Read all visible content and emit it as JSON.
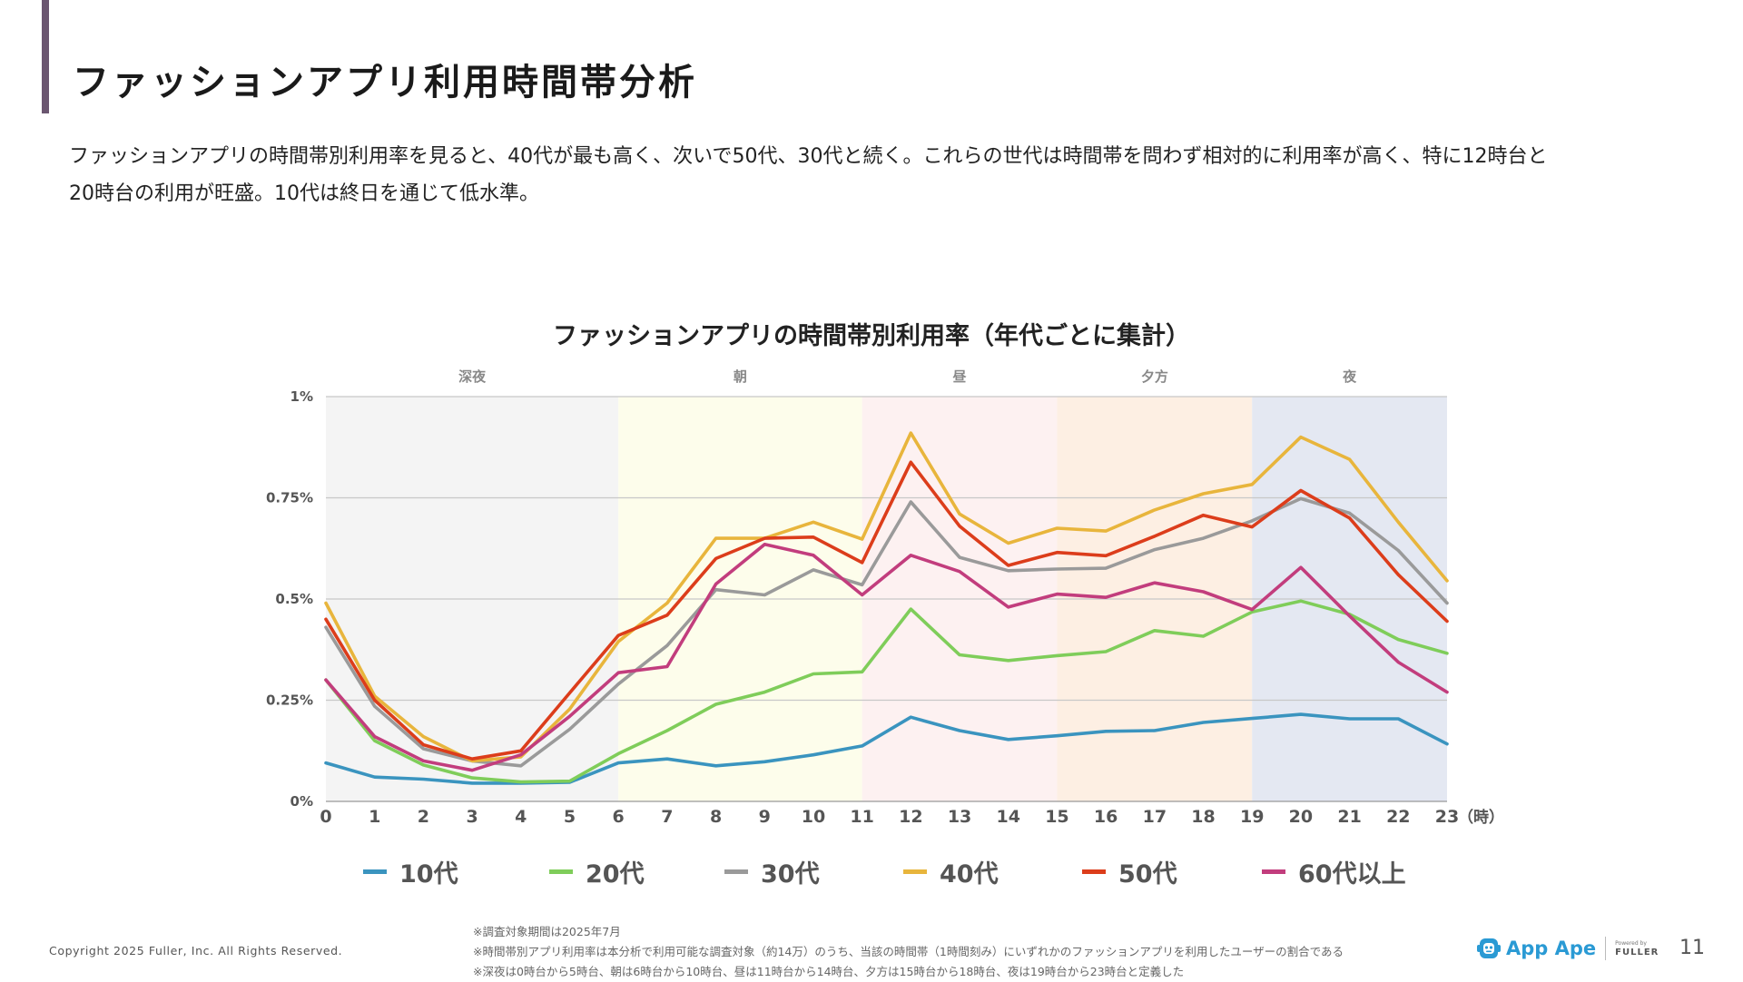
{
  "page": {
    "title": "ファッションアプリ利用時間帯分析",
    "summary_line1": "ファッションアプリの時間帯別利用率を見ると、40代が最も高く、次いで50代、30代と続く。これらの世代は時間帯を問わず相対的に利用率が高く、特に12時台と",
    "summary_line2": "20時台の利用が旺盛。10代は終日を通じて低水準。",
    "copyright": "Copyright 2025 Fuller, Inc. All Rights Reserved.",
    "notes": [
      "※調査対象期間は2025年7月",
      "※時間帯別アプリ利用率は本分析で利用可能な調査対象（約14万）のうち、当該の時間帯（1時間刻み）にいずれかのファッションアプリを利用したユーザーの割合である",
      "※深夜は0時台から5時台、朝は6時台から10時台、昼は11時台から14時台、夕方は15時台から18時台、夜は19時台から23時台と定義した"
    ],
    "logo_text": "App Ape",
    "logo_powered_by": "Powered by",
    "logo_company": "FULLER",
    "page_number": "11"
  },
  "chart_data": {
    "type": "line",
    "title": "ファッションアプリの時間帯別利用率（年代ごとに集計）",
    "x": [
      0,
      1,
      2,
      3,
      4,
      5,
      6,
      7,
      8,
      9,
      10,
      11,
      12,
      13,
      14,
      15,
      16,
      17,
      18,
      19,
      20,
      21,
      22,
      23
    ],
    "x_unit_label": "（時）",
    "y_ticks": [
      0,
      0.25,
      0.5,
      0.75,
      1
    ],
    "y_tick_labels": [
      "0%",
      "0.25%",
      "0.5%",
      "0.75%",
      "1%"
    ],
    "ylim": [
      0,
      1
    ],
    "grid": true,
    "legend_position": "bottom",
    "bands": [
      {
        "label": "深夜",
        "from": 0,
        "to": 6,
        "color": "#f4f4f4"
      },
      {
        "label": "朝",
        "from": 6,
        "to": 11,
        "color": "#fdfdeb"
      },
      {
        "label": "昼",
        "from": 11,
        "to": 15,
        "color": "#fdf1f1"
      },
      {
        "label": "夕方",
        "from": 15,
        "to": 19,
        "color": "#fdefe3"
      },
      {
        "label": "夜",
        "from": 19,
        "to": 23,
        "color": "#e4e8f2"
      }
    ],
    "series": [
      {
        "name": "10代",
        "color": "#3a94bf",
        "values": [
          0.095,
          0.06,
          0.055,
          0.045,
          0.045,
          0.047,
          0.095,
          0.105,
          0.088,
          0.098,
          0.115,
          0.137,
          0.208,
          0.175,
          0.153,
          0.162,
          0.173,
          0.175,
          0.195,
          0.205,
          0.215,
          0.204,
          0.204,
          0.142
        ]
      },
      {
        "name": "20代",
        "color": "#7fcd5a",
        "values": [
          0.3,
          0.15,
          0.09,
          0.058,
          0.048,
          0.05,
          0.118,
          0.175,
          0.24,
          0.27,
          0.315,
          0.32,
          0.475,
          0.362,
          0.348,
          0.36,
          0.37,
          0.422,
          0.408,
          0.468,
          0.495,
          0.462,
          0.4,
          0.366
        ]
      },
      {
        "name": "30代",
        "color": "#9a9a9a",
        "values": [
          0.43,
          0.235,
          0.13,
          0.1,
          0.088,
          0.178,
          0.29,
          0.385,
          0.523,
          0.51,
          0.572,
          0.535,
          0.74,
          0.603,
          0.57,
          0.574,
          0.576,
          0.622,
          0.65,
          0.693,
          0.748,
          0.712,
          0.62,
          0.49
        ]
      },
      {
        "name": "40代",
        "color": "#e8b53c",
        "values": [
          0.49,
          0.26,
          0.16,
          0.1,
          0.11,
          0.228,
          0.395,
          0.49,
          0.65,
          0.65,
          0.69,
          0.648,
          0.91,
          0.71,
          0.638,
          0.675,
          0.668,
          0.72,
          0.76,
          0.783,
          0.9,
          0.845,
          0.69,
          0.545
        ]
      },
      {
        "name": "50代",
        "color": "#dc3d1b",
        "values": [
          0.45,
          0.25,
          0.14,
          0.105,
          0.125,
          0.268,
          0.41,
          0.46,
          0.6,
          0.65,
          0.653,
          0.59,
          0.838,
          0.68,
          0.583,
          0.615,
          0.607,
          0.655,
          0.707,
          0.678,
          0.768,
          0.7,
          0.56,
          0.445
        ]
      },
      {
        "name": "60代以上",
        "color": "#c23d7d",
        "values": [
          0.3,
          0.16,
          0.1,
          0.077,
          0.115,
          0.21,
          0.318,
          0.333,
          0.537,
          0.635,
          0.608,
          0.51,
          0.608,
          0.568,
          0.48,
          0.512,
          0.504,
          0.54,
          0.518,
          0.474,
          0.578,
          0.458,
          0.344,
          0.27
        ]
      }
    ]
  }
}
